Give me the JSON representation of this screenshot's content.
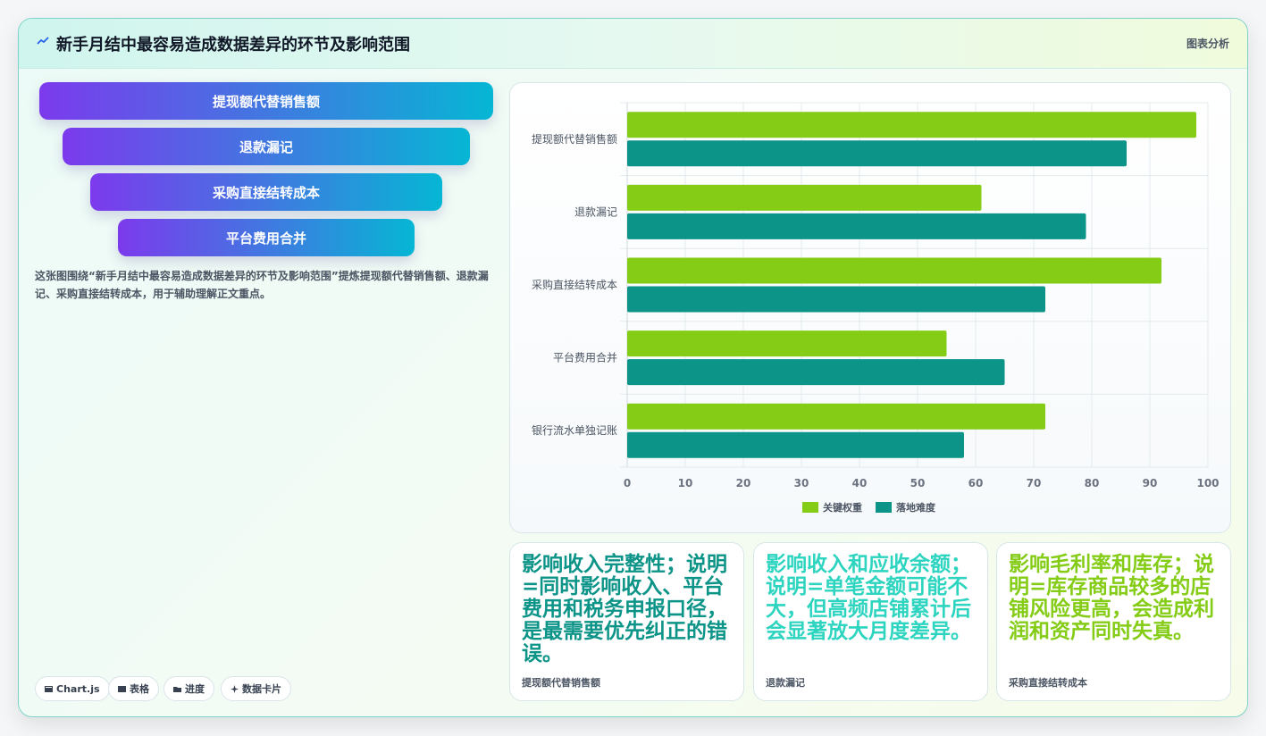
{
  "header": {
    "title": "新手月结中最容易造成数据差异的环节及影响范围",
    "tag": "图表分析",
    "icon": "trend-icon"
  },
  "funnel": [
    {
      "label": "提现额代替销售额"
    },
    {
      "label": "退款漏记"
    },
    {
      "label": "采购直接结转成本"
    },
    {
      "label": "平台费用合并"
    }
  ],
  "description": "这张图围绕“新手月结中最容易造成数据差异的环节及影响范围”提炼提现额代替销售额、退款漏记、采购直接结转成本，用于辅助理解正文重点。",
  "pills": [
    {
      "label": "Chart.js",
      "icon": "chart-icon"
    },
    {
      "label": "表格",
      "icon": "table-icon"
    },
    {
      "label": "进度",
      "icon": "progress-icon"
    },
    {
      "label": "数据卡片",
      "icon": "sparkle-icon"
    }
  ],
  "colors": {
    "series_a": "#84cc16",
    "series_b": "#0d9488",
    "card1_text": "#0d9488",
    "card2_text": "#2dd4bf",
    "card3_text": "#84cc16"
  },
  "chart_data": {
    "type": "bar",
    "orientation": "horizontal",
    "categories": [
      "提现额代替销售额",
      "退款漏记",
      "采购直接结转成本",
      "平台费用合并",
      "银行流水单独记账"
    ],
    "series": [
      {
        "name": "关键权重",
        "values": [
          98,
          61,
          92,
          55,
          72
        ]
      },
      {
        "name": "落地难度",
        "values": [
          86,
          79,
          72,
          65,
          58
        ]
      }
    ],
    "xlim": [
      0,
      100
    ],
    "xticks": [
      "0",
      "10",
      "20",
      "30",
      "40",
      "50",
      "60",
      "70",
      "80",
      "90",
      "100"
    ],
    "grid": true,
    "legend": "bottom"
  },
  "cards": [
    {
      "text": "影响收入完整性；说明=同时影响收入、平台费用和税务申报口径，是最需要优先纠正的错误。",
      "label": "提现额代替销售额"
    },
    {
      "text": "影响收入和应收余额；说明=单笔金额可能不大，但高频店铺累计后会显著放大月度差异。",
      "label": "退款漏记"
    },
    {
      "text": "影响毛利率和库存；说明=库存商品较多的店铺风险更高，会造成利润和资产同时失真。",
      "label": "采购直接结转成本"
    }
  ]
}
